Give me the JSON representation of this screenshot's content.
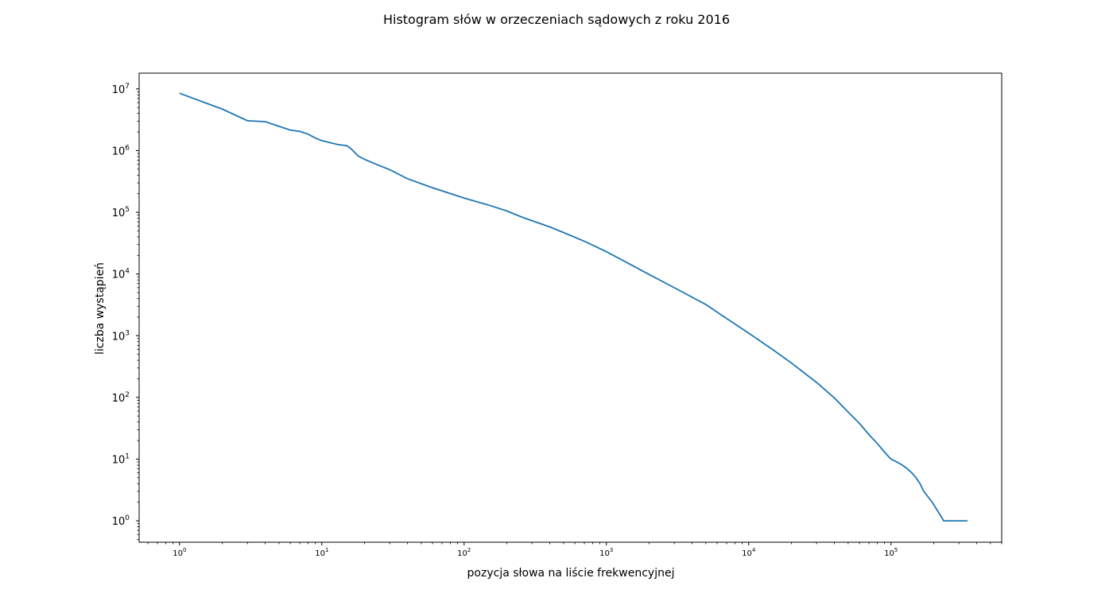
{
  "chart_data": {
    "type": "line",
    "title": "Histogram słów w orzeczeniach sądowych z roku 2016",
    "xlabel": "pozycja słowa na liście frekwencyjnej",
    "ylabel": "liczba wystąpień",
    "xscale": "log",
    "yscale": "log",
    "xlim": [
      0.52,
      600000
    ],
    "ylim": [
      0.45,
      18000000
    ],
    "grid": false,
    "line_color": "#1f77b4",
    "x_ticks": [
      {
        "base": "10",
        "exp": "0",
        "value": 1
      },
      {
        "base": "10",
        "exp": "1",
        "value": 10
      },
      {
        "base": "10",
        "exp": "2",
        "value": 100
      },
      {
        "base": "10",
        "exp": "3",
        "value": 1000
      },
      {
        "base": "10",
        "exp": "4",
        "value": 10000
      },
      {
        "base": "10",
        "exp": "5",
        "value": 100000
      }
    ],
    "y_ticks": [
      {
        "base": "10",
        "exp": "0",
        "value": 1
      },
      {
        "base": "10",
        "exp": "1",
        "value": 10
      },
      {
        "base": "10",
        "exp": "2",
        "value": 100
      },
      {
        "base": "10",
        "exp": "3",
        "value": 1000
      },
      {
        "base": "10",
        "exp": "4",
        "value": 10000
      },
      {
        "base": "10",
        "exp": "5",
        "value": 100000
      },
      {
        "base": "10",
        "exp": "6",
        "value": 1000000
      },
      {
        "base": "10",
        "exp": "7",
        "value": 10000000
      }
    ],
    "series": [
      {
        "x": [
          1,
          2,
          3,
          4,
          6,
          7,
          8,
          9,
          10,
          13,
          15,
          16,
          18,
          20,
          25,
          30,
          40,
          60,
          100,
          150,
          200,
          250,
          300,
          400,
          500,
          700,
          1000,
          1500,
          2000,
          3000,
          5000,
          7000,
          10000,
          15000,
          20000,
          30000,
          40000,
          50000,
          60000,
          70000,
          80000,
          90000,
          100000,
          110000,
          120000,
          130000,
          140000,
          150000,
          160000,
          170000,
          195000,
          235000,
          345000
        ],
        "y": [
          8500000,
          4700000,
          3050000,
          2950000,
          2150000,
          2050000,
          1850000,
          1600000,
          1450000,
          1250000,
          1200000,
          1080000,
          820000,
          720000,
          580000,
          490000,
          350000,
          250000,
          170000,
          130000,
          105000,
          85000,
          73000,
          58000,
          47000,
          34000,
          23000,
          14000,
          9800,
          6000,
          3200,
          1900,
          1100,
          580,
          360,
          175,
          98,
          58,
          38,
          25,
          18,
          13,
          10,
          9,
          8,
          7,
          6,
          5,
          4,
          3,
          2,
          1,
          1
        ]
      }
    ]
  }
}
